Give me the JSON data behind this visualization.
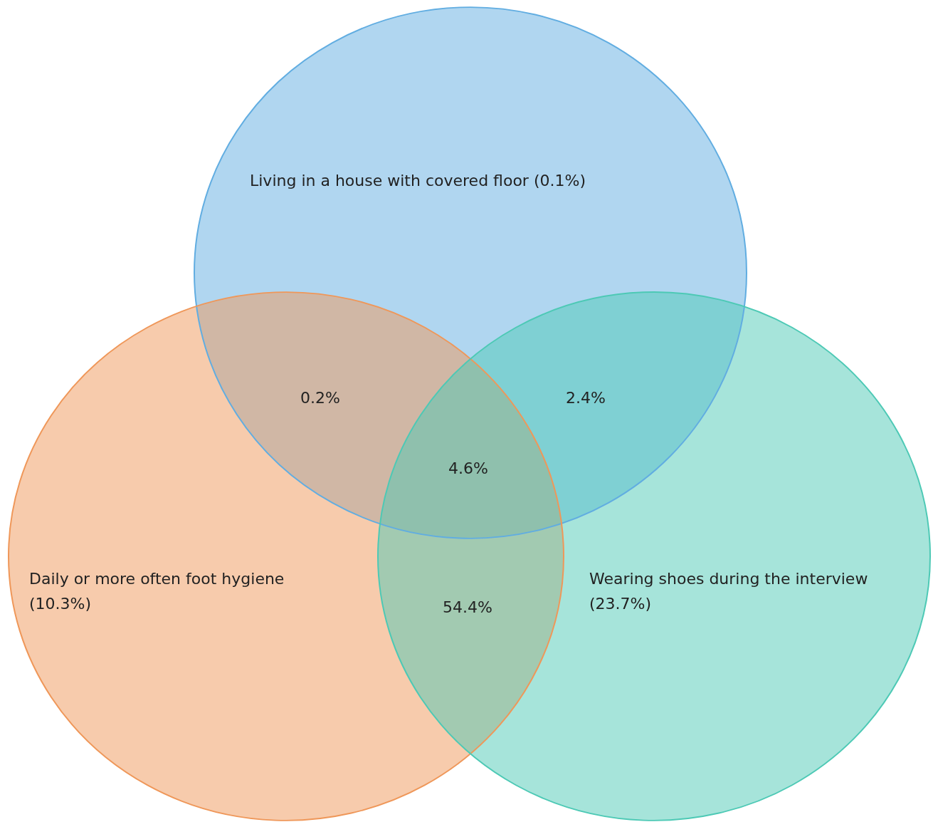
{
  "chart_data": {
    "type": "other",
    "series": [
      {
        "name": "Living in a house with covered floor",
        "color": "#61ade1",
        "values": [
          0.1
        ],
        "value_labels": [
          "(0.1%)"
        ]
      },
      {
        "name": "Daily or more often foot hygiene",
        "color": "#ef9759",
        "values": [
          10.3
        ],
        "value_labels": [
          "(10.3%)"
        ]
      },
      {
        "name": "Wearing shoes during the interview",
        "color": "#4dc9b5",
        "values": [
          23.7
        ],
        "value_labels": [
          "(23.7%)"
        ]
      }
    ],
    "annotations": [
      "0.2%",
      "2.4%",
      "4.6%",
      "54.4%"
    ]
  }
}
